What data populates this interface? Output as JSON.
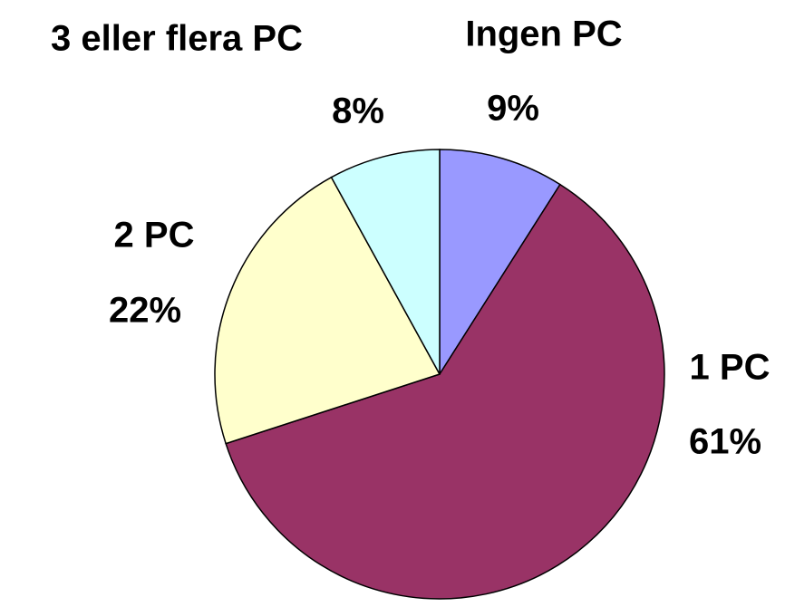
{
  "chart_data": {
    "type": "pie",
    "categories": [
      "Ingen PC",
      "1 PC",
      "2 PC",
      "3 eller flera PC"
    ],
    "values": [
      9,
      61,
      22,
      8
    ],
    "value_labels": [
      "9%",
      "61%",
      "22%",
      "8%"
    ],
    "colors": [
      "#9999ff",
      "#993366",
      "#ffffcc",
      "#ccffff"
    ]
  }
}
